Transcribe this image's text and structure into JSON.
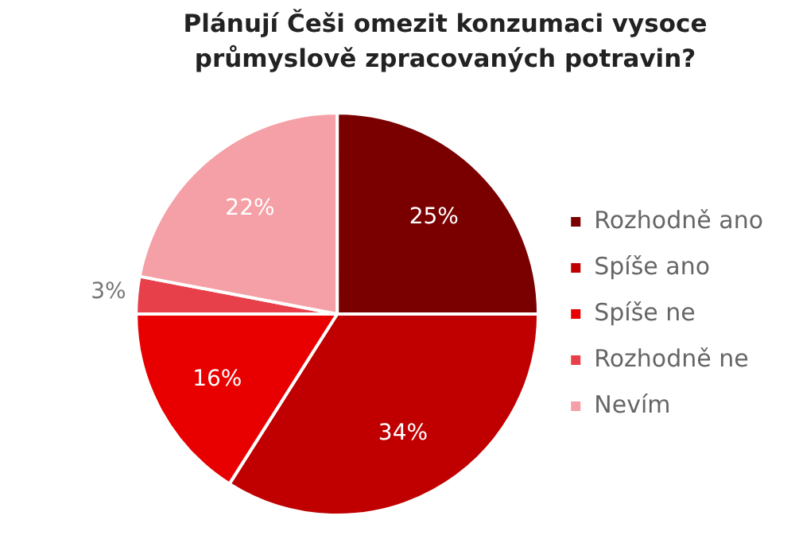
{
  "chart_data": {
    "type": "pie",
    "title": "Plánují Češi omezit konzumaci vysoce průmyslově zpracovaných potravin?",
    "categories": [
      "Rozhodně ano",
      "Spíše ano",
      "Spíše ne",
      "Rozhodně ne",
      "Nevím"
    ],
    "values": [
      25,
      34,
      16,
      3,
      22
    ],
    "colors": [
      "#7a0000",
      "#c00000",
      "#e80000",
      "#e8404a",
      "#f4a0a6"
    ],
    "value_labels": [
      "25%",
      "34%",
      "16%",
      "3%",
      "22%"
    ],
    "legend": "right"
  }
}
